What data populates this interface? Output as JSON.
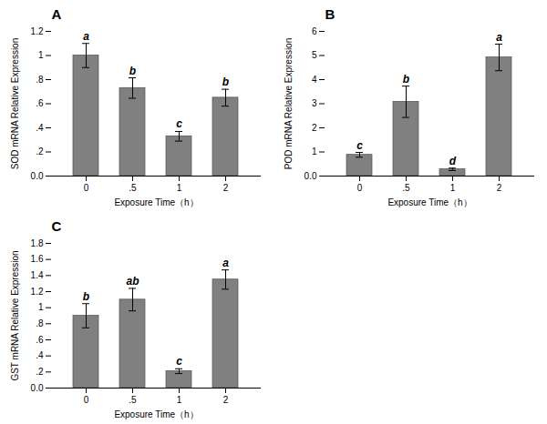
{
  "chart_data": [
    {
      "type": "bar",
      "title": "A",
      "ylabel": "SOD mRNA Relative Expression",
      "xlabel": "Exposure Time（h）",
      "categories": [
        "0",
        ".5",
        "1",
        "2"
      ],
      "values": [
        1.0,
        0.73,
        0.33,
        0.65
      ],
      "errors": [
        0.1,
        0.085,
        0.04,
        0.07
      ],
      "letters": [
        "a",
        "b",
        "c",
        "b"
      ],
      "color": "#808080",
      "grid": false,
      "ylim": [
        0,
        1.2
      ],
      "yticks": [
        {
          "value": 0,
          "label": "0.0"
        },
        {
          "value": 0.2,
          "label": ".2"
        },
        {
          "value": 0.4,
          "label": ".4"
        },
        {
          "value": 0.6,
          "label": ".6"
        },
        {
          "value": 0.8,
          "label": ".8"
        },
        1,
        1.2
      ]
    },
    {
      "type": "bar",
      "title": "B",
      "ylabel": "POD mRNA Relative Expression",
      "xlabel": "Exposure Time（h）",
      "categories": [
        "0",
        ".5",
        "1",
        "2"
      ],
      "values": [
        0.88,
        3.08,
        0.28,
        4.92
      ],
      "errors": [
        0.1,
        0.65,
        0.05,
        0.55
      ],
      "letters": [
        "c",
        "b",
        "d",
        "a"
      ],
      "color": "#808080",
      "grid": false,
      "ylim": [
        0,
        6
      ],
      "yticks": [
        {
          "value": 0,
          "label": "0.0"
        },
        1,
        2,
        3,
        4,
        5,
        6
      ]
    },
    {
      "type": "bar",
      "title": "C",
      "ylabel": "GST mRNA Relative Expression",
      "xlabel": "Exposure Time（h）",
      "categories": [
        "0",
        ".5",
        "1",
        "2"
      ],
      "values": [
        0.9,
        1.1,
        0.21,
        1.35
      ],
      "errors": [
        0.15,
        0.14,
        0.03,
        0.12
      ],
      "letters": [
        "b",
        "ab",
        "c",
        "a"
      ],
      "color": "#808080",
      "grid": false,
      "ylim": [
        0,
        1.8
      ],
      "yticks": [
        {
          "value": 0,
          "label": "0.0"
        },
        {
          "value": 0.2,
          "label": ".2"
        },
        {
          "value": 0.4,
          "label": ".4"
        },
        {
          "value": 0.6,
          "label": ".6"
        },
        {
          "value": 0.8,
          "label": ".8"
        },
        1,
        1.2,
        1.4,
        1.6,
        1.8
      ]
    }
  ]
}
